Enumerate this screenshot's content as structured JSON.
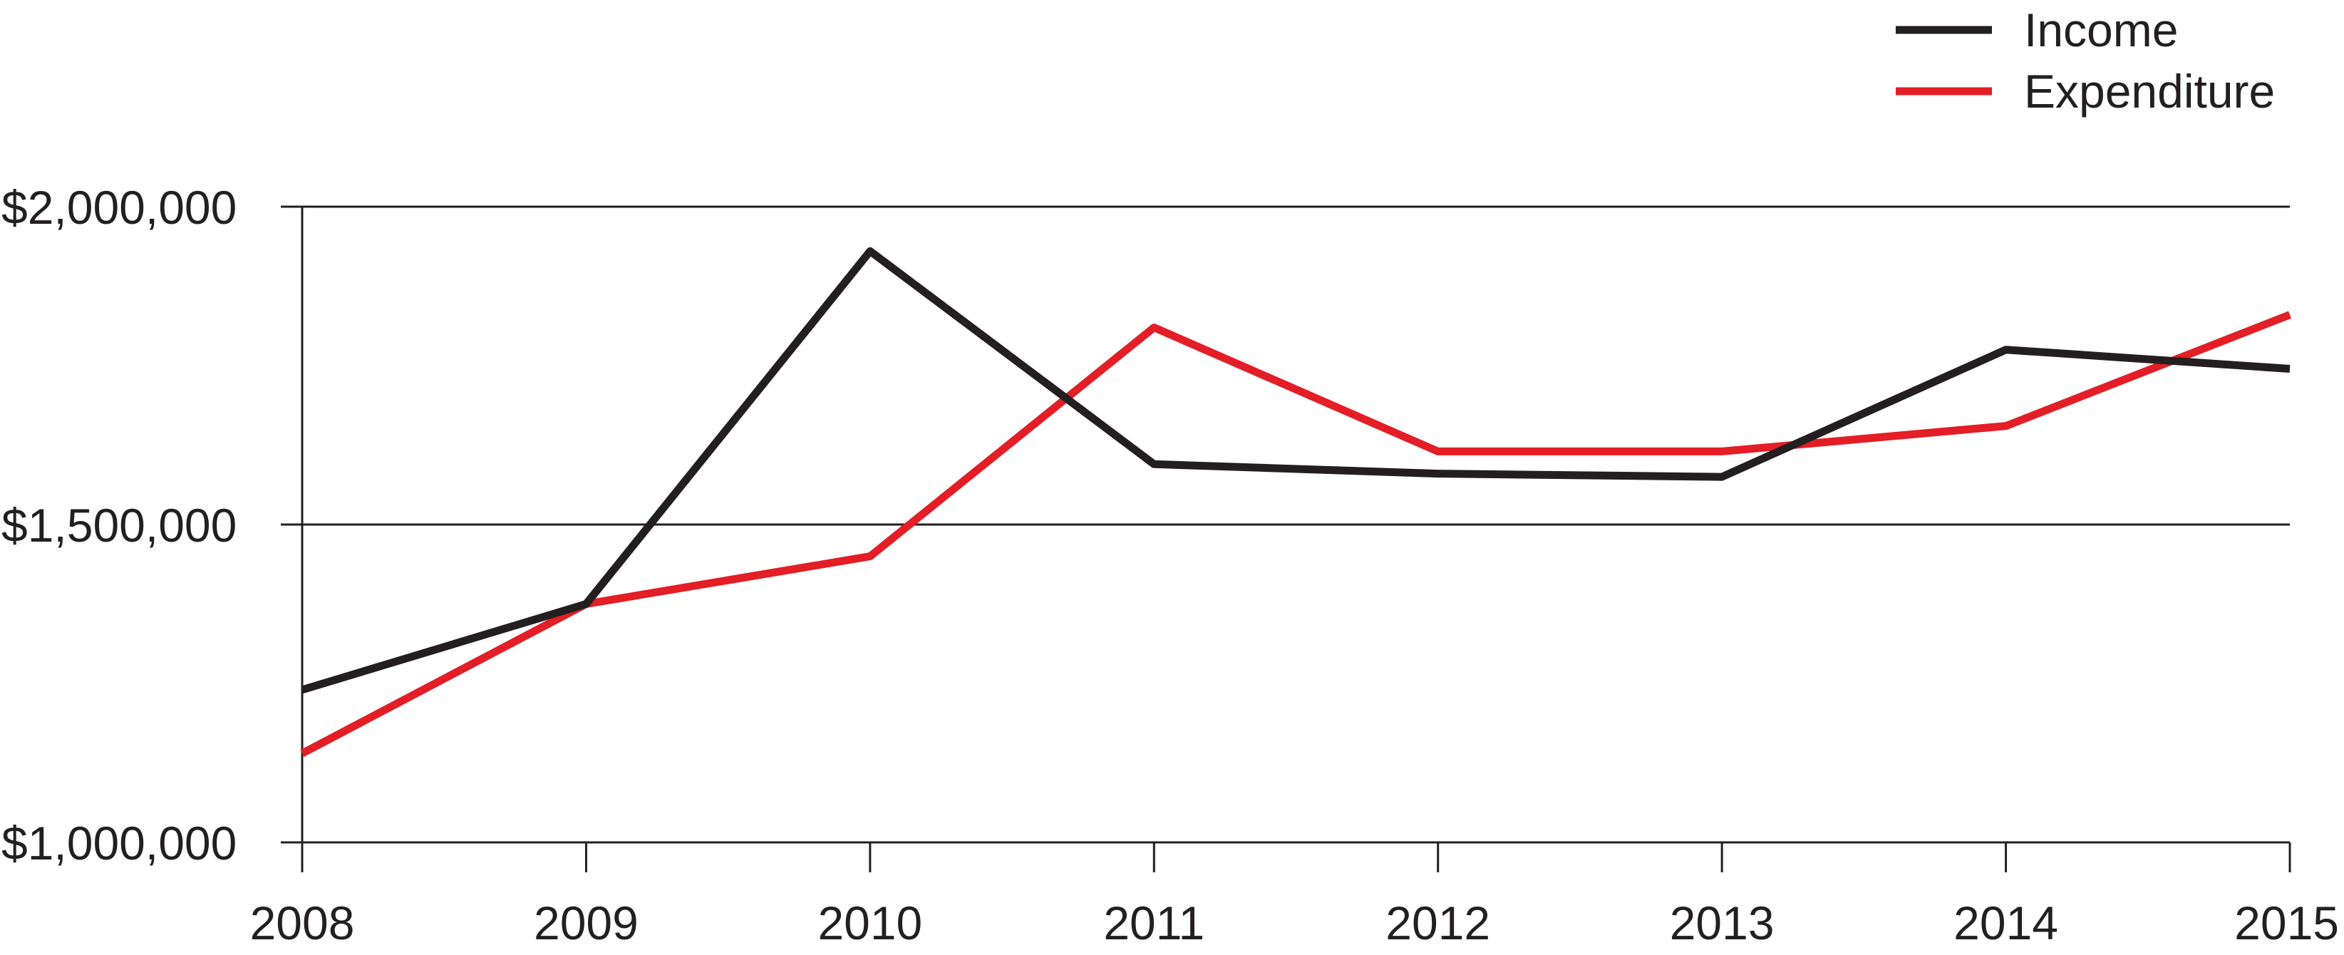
{
  "chart_data": {
    "type": "line",
    "title": "",
    "xlabel": "",
    "ylabel": "",
    "x": [
      "2008",
      "2009",
      "2010",
      "2011",
      "2012",
      "2013",
      "2014",
      "2015"
    ],
    "ylim": [
      1000000,
      2000000
    ],
    "yticks": [
      1000000,
      1500000,
      2000000
    ],
    "ytick_labels": [
      "$1,000,000",
      "$1,500,000",
      "$2,000,000"
    ],
    "grid": true,
    "legend_position": "top-right",
    "series": [
      {
        "name": "Income",
        "color": "#231f20",
        "values": [
          1240000,
          1375000,
          1930000,
          1595000,
          1580000,
          1575000,
          1775000,
          1745000
        ]
      },
      {
        "name": "Expenditure",
        "color": "#e31e26",
        "values": [
          1140000,
          1375000,
          1450000,
          1810000,
          1615000,
          1615000,
          1655000,
          1830000
        ]
      }
    ]
  }
}
